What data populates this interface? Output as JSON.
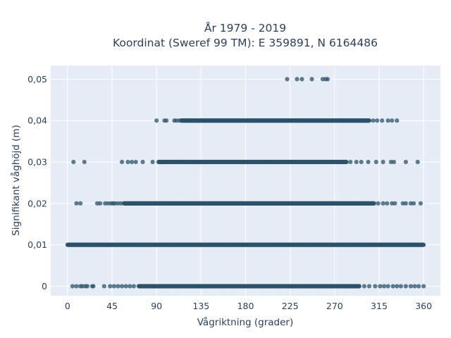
{
  "chart_data": {
    "type": "scatter",
    "title_lines": [
      "År 1979 - 2019",
      "Koordinat (Sweref 99 TM): E 359891, N 6164486"
    ],
    "xlabel": "Vågriktning (grader)",
    "ylabel": "Signifikant våghöjd (m)",
    "xlim": [
      -17,
      377
    ],
    "ylim": [
      -0.0023,
      0.0533
    ],
    "x_ticks": [
      0,
      45,
      90,
      135,
      180,
      225,
      270,
      315,
      360
    ],
    "x_tick_labels": [
      "0",
      "45",
      "90",
      "135",
      "180",
      "225",
      "270",
      "315",
      "360"
    ],
    "y_ticks": [
      0,
      0.01,
      0.02,
      0.03,
      0.04,
      0.05
    ],
    "y_tick_labels": [
      "0",
      "0,01",
      "0,02",
      "0,03",
      "0,04",
      "0,05"
    ],
    "grid": true,
    "legend": "none",
    "marker_color": "#2c5168",
    "background_color": "#e5ecf6",
    "series": [
      {
        "y_level": 0.05,
        "dense_range": null,
        "x": [
          222,
          232,
          237,
          247,
          258,
          261,
          263
        ]
      },
      {
        "y_level": 0.04,
        "dense_range": [
          115,
          305
        ],
        "x": [
          90,
          98,
          100,
          108,
          110,
          113,
          309,
          313,
          318,
          324,
          328,
          333
        ]
      },
      {
        "y_level": 0.03,
        "dense_range": [
          92,
          282
        ],
        "x": [
          6,
          17,
          55,
          61,
          65,
          69,
          76,
          86,
          286,
          292,
          297,
          304,
          312,
          319,
          327,
          330,
          342,
          354
        ]
      },
      {
        "y_level": 0.02,
        "dense_range": [
          57,
          310
        ],
        "x": [
          9,
          13,
          30,
          33,
          38,
          41,
          44,
          46,
          48,
          51,
          54,
          314,
          319,
          323,
          328,
          331,
          339,
          342,
          347,
          350,
          357
        ]
      },
      {
        "y_level": 0.01,
        "dense_range": [
          0,
          360
        ],
        "x": []
      },
      {
        "y_level": 0.0,
        "dense_range": [
          72,
          295
        ],
        "x": [
          5,
          9,
          13,
          15,
          18,
          20,
          25,
          26,
          37,
          43,
          47,
          51,
          55,
          59,
          63,
          67,
          300,
          305,
          311,
          316,
          320,
          324,
          329,
          333,
          337,
          342,
          347,
          351,
          355,
          360
        ]
      }
    ]
  }
}
